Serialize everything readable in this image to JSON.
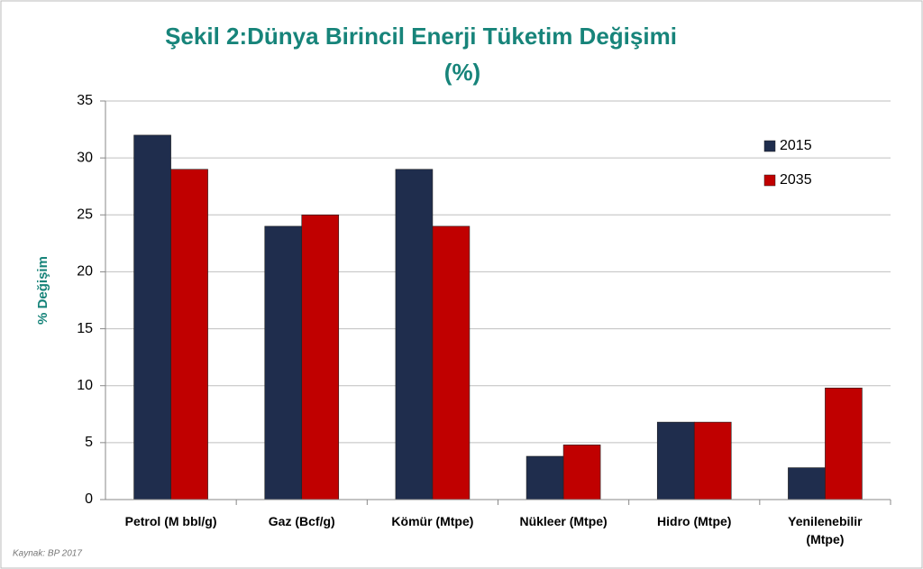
{
  "chart_data": {
    "type": "bar",
    "title": [
      "Şekil 2:Dünya Birincil Enerji Tüketim Değişimi",
      "(%)"
    ],
    "y_label": "% Değişim",
    "source": "Kaynak: BP 2017",
    "categories": [
      "Petrol (M bbl/g)",
      "Gaz (Bcf/g)",
      "Kömür (Mtpe)",
      "Nükleer (Mtpe)",
      "Hidro (Mtpe)",
      "Yenilenebilir (Mtpe)"
    ],
    "series": [
      {
        "name": "2015",
        "color": "#1f2d4d",
        "values": [
          32,
          24,
          29,
          3.8,
          6.8,
          2.8
        ]
      },
      {
        "name": "2035",
        "color": "#c00000",
        "values": [
          29,
          25,
          24,
          4.8,
          6.8,
          9.8
        ]
      }
    ],
    "ylim": [
      0,
      35
    ],
    "yticks": [
      0,
      5,
      10,
      15,
      20,
      25,
      30,
      35
    ],
    "grid": true,
    "legend": "top-right"
  }
}
